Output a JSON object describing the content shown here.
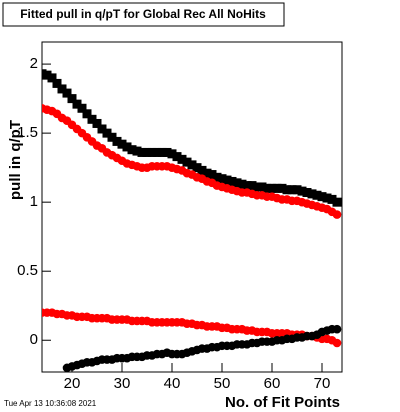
{
  "chart_data": {
    "type": "scatter",
    "title": "Fitted pull in q/pT for Global Rec All NoHits",
    "x_label": "No. of Fit Points",
    "y_label": "pull in q/pT",
    "timestamp": "Tue Apr 13 10:36:08 2021",
    "xlim": [
      14,
      74
    ],
    "ylim": [
      -0.23,
      2.16
    ],
    "xticks": [
      20,
      30,
      40,
      50,
      60,
      70
    ],
    "yticks": [
      0,
      0.5,
      1,
      1.5,
      2
    ],
    "x": [
      14,
      15,
      16,
      17,
      18,
      19,
      20,
      21,
      22,
      23,
      24,
      25,
      26,
      27,
      28,
      29,
      30,
      31,
      32,
      33,
      34,
      35,
      36,
      37,
      38,
      39,
      40,
      41,
      42,
      43,
      44,
      45,
      46,
      47,
      48,
      49,
      50,
      51,
      52,
      53,
      54,
      55,
      56,
      57,
      58,
      59,
      60,
      61,
      62,
      63,
      64,
      65,
      66,
      67,
      68,
      69,
      70,
      71,
      72,
      73
    ],
    "series": [
      {
        "color": "#000000",
        "marker": "square",
        "values": [
          1.93,
          1.92,
          1.9,
          1.86,
          1.82,
          1.79,
          1.75,
          1.71,
          1.68,
          1.64,
          1.6,
          1.57,
          1.53,
          1.5,
          1.47,
          1.44,
          1.42,
          1.4,
          1.38,
          1.37,
          1.36,
          1.36,
          1.36,
          1.36,
          1.36,
          1.36,
          1.35,
          1.33,
          1.31,
          1.29,
          1.27,
          1.25,
          1.23,
          1.21,
          1.2,
          1.18,
          1.17,
          1.16,
          1.15,
          1.14,
          1.13,
          1.12,
          1.12,
          1.11,
          1.11,
          1.1,
          1.1,
          1.1,
          1.1,
          1.09,
          1.09,
          1.09,
          1.08,
          1.07,
          1.06,
          1.05,
          1.04,
          1.03,
          1.02,
          1.0
        ]
      },
      {
        "color": "#ff0000",
        "marker": "circle",
        "values": [
          1.68,
          1.67,
          1.66,
          1.64,
          1.61,
          1.59,
          1.56,
          1.53,
          1.5,
          1.47,
          1.44,
          1.41,
          1.39,
          1.36,
          1.34,
          1.32,
          1.3,
          1.28,
          1.27,
          1.26,
          1.25,
          1.25,
          1.26,
          1.26,
          1.26,
          1.26,
          1.25,
          1.24,
          1.23,
          1.21,
          1.2,
          1.18,
          1.17,
          1.15,
          1.14,
          1.12,
          1.11,
          1.1,
          1.09,
          1.08,
          1.07,
          1.07,
          1.06,
          1.05,
          1.05,
          1.04,
          1.04,
          1.03,
          1.02,
          1.02,
          1.01,
          1.01,
          1.0,
          0.99,
          0.98,
          0.97,
          0.96,
          0.95,
          0.93,
          0.91
        ]
      },
      {
        "color": "#ff0000",
        "marker": "circle",
        "values": [
          0.2,
          0.2,
          0.2,
          0.19,
          0.19,
          0.18,
          0.18,
          0.17,
          0.17,
          0.17,
          0.16,
          0.16,
          0.16,
          0.16,
          0.15,
          0.15,
          0.15,
          0.15,
          0.14,
          0.14,
          0.14,
          0.14,
          0.13,
          0.13,
          0.13,
          0.13,
          0.13,
          0.13,
          0.13,
          0.12,
          0.12,
          0.11,
          0.11,
          0.1,
          0.1,
          0.1,
          0.09,
          0.09,
          0.08,
          0.08,
          0.08,
          0.07,
          0.07,
          0.06,
          0.06,
          0.06,
          0.05,
          0.05,
          0.05,
          0.05,
          0.04,
          0.04,
          0.04,
          0.03,
          0.03,
          0.02,
          0.01,
          0.01,
          0,
          -0.02
        ]
      },
      {
        "color": "#000000",
        "marker": "circle",
        "values": [
          null,
          null,
          null,
          null,
          null,
          -0.2,
          -0.19,
          -0.18,
          -0.17,
          -0.16,
          -0.16,
          -0.15,
          -0.14,
          -0.14,
          -0.14,
          -0.13,
          -0.13,
          -0.13,
          -0.12,
          -0.12,
          -0.12,
          -0.11,
          -0.11,
          -0.1,
          -0.1,
          -0.09,
          -0.1,
          -0.1,
          -0.1,
          -0.09,
          -0.08,
          -0.07,
          -0.06,
          -0.06,
          -0.05,
          -0.05,
          -0.04,
          -0.04,
          -0.04,
          -0.03,
          -0.03,
          -0.03,
          -0.02,
          -0.02,
          -0.01,
          -0.01,
          -0.01,
          0,
          0,
          0.01,
          0.01,
          0.02,
          0.02,
          0.03,
          0.03,
          0.04,
          0.06,
          0.07,
          0.08,
          0.08
        ]
      }
    ]
  }
}
